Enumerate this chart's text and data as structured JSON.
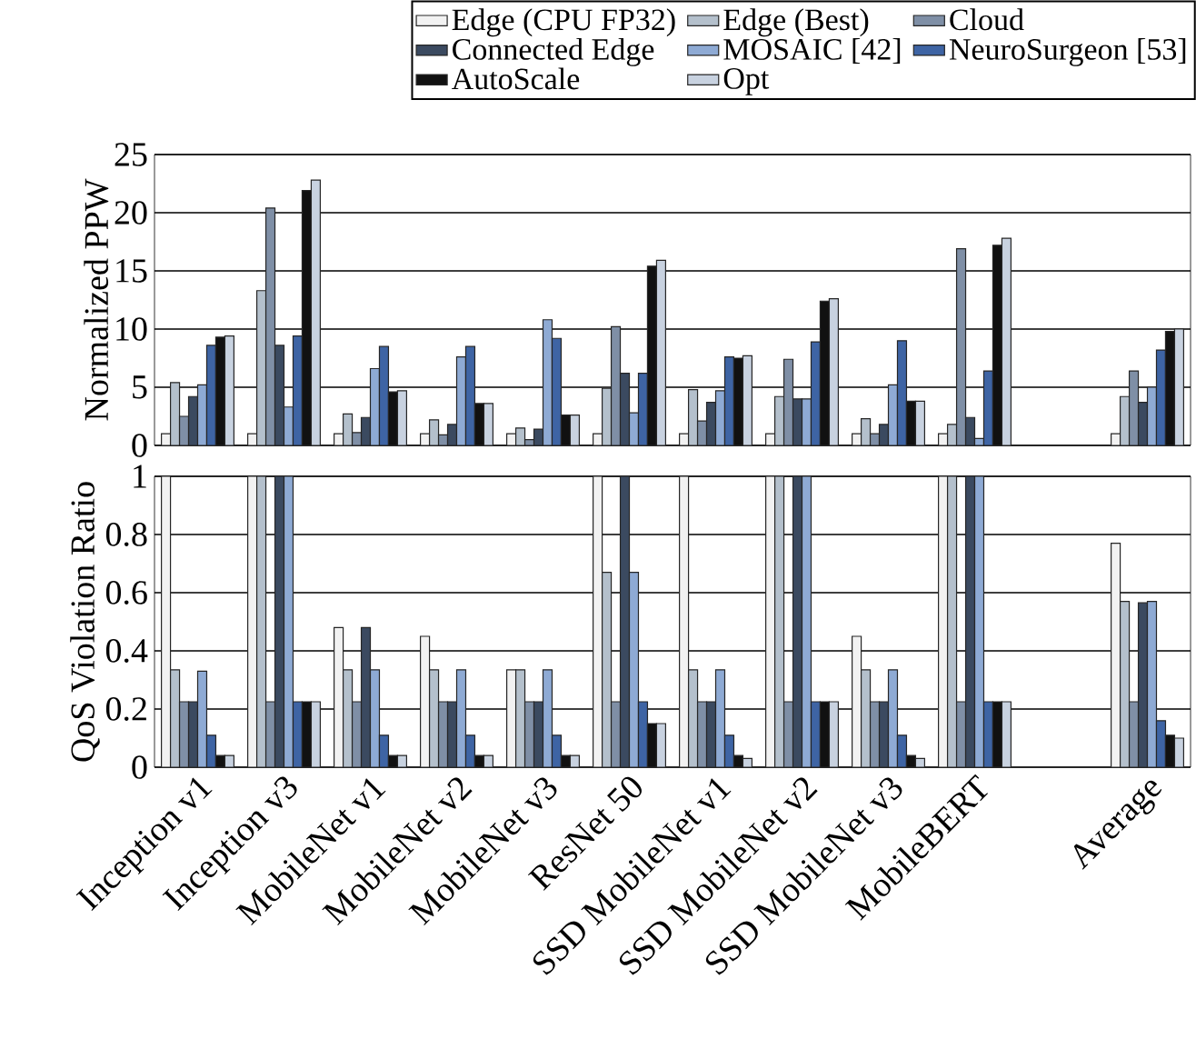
{
  "chart_data": [
    {
      "type": "bar",
      "ylabel": "Normalized PPW",
      "categories": [
        null,
        null,
        null,
        null,
        null,
        null,
        null,
        null,
        null,
        null,
        null,
        null
      ],
      "series": [
        {
          "name": "Edge (CPU FP32)",
          "color": "#f2f2f2",
          "values": [
            1,
            1,
            1,
            1,
            1,
            1,
            1,
            1,
            1,
            1,
            null,
            1
          ]
        },
        {
          "name": "Edge (Best)",
          "color": "#b4c0cc",
          "values": [
            5.4,
            13.3,
            2.7,
            2.2,
            1.5,
            4.9,
            4.8,
            4.2,
            2.3,
            1.8,
            null,
            4.2
          ]
        },
        {
          "name": "Cloud",
          "color": "#7f8fa6",
          "values": [
            2.5,
            20.4,
            1.1,
            0.9,
            0.5,
            10.2,
            2.1,
            7.4,
            1,
            16.9,
            null,
            6.4
          ]
        },
        {
          "name": "Connected Edge",
          "color": "#3b4a60",
          "values": [
            4.2,
            8.6,
            2.4,
            1.8,
            1.4,
            6.2,
            3.7,
            4,
            1.8,
            2.4,
            null,
            3.7
          ]
        },
        {
          "name": "MOSAIC [42]",
          "color": "#8eaad4",
          "values": [
            5.2,
            3.3,
            6.6,
            7.6,
            10.8,
            2.8,
            4.7,
            4,
            5.2,
            0.6,
            null,
            5
          ]
        },
        {
          "name": "NeuroSurgeon [53]",
          "color": "#3e64a4",
          "values": [
            8.6,
            9.4,
            8.5,
            8.5,
            9.2,
            6.2,
            7.6,
            8.9,
            9,
            6.4,
            null,
            8.2
          ]
        },
        {
          "name": "AutoScale",
          "color": "#111111",
          "values": [
            9.3,
            21.9,
            4.6,
            3.6,
            2.6,
            15.4,
            7.5,
            12.4,
            3.8,
            17.2,
            null,
            9.8
          ]
        },
        {
          "name": "Opt",
          "color": "#c8d2e0",
          "values": [
            9.4,
            22.8,
            4.7,
            3.6,
            2.6,
            15.9,
            7.7,
            12.6,
            3.8,
            17.8,
            null,
            10
          ]
        }
      ],
      "ylim": [
        0,
        25
      ],
      "yticks": [
        0,
        5,
        10,
        15,
        20,
        25
      ],
      "grid": "y",
      "legend": "top",
      "tick_labels": "y"
    },
    {
      "type": "bar",
      "ylabel": "QoS Violation Ratio",
      "categories": [
        "Inception v1",
        "Inception v3",
        "MobileNet v1",
        "MobileNet v2",
        "MobileNet v3",
        "ResNet 50",
        "SSD MobileNet v1",
        "SSD MobileNet v2",
        "SSD MobileNet v3",
        "MobileBERT",
        null,
        "Average"
      ],
      "series": [
        {
          "color": "#f2f2f2",
          "values": [
            1,
            1,
            0.48,
            0.45,
            0.335,
            1,
            1,
            1,
            0.45,
            1,
            null,
            0.77
          ]
        },
        {
          "color": "#b4c0cc",
          "values": [
            0.335,
            1,
            0.335,
            0.335,
            0.335,
            0.67,
            0.335,
            1,
            0.335,
            1,
            null,
            0.57
          ]
        },
        {
          "color": "#7f8fa6",
          "values": [
            0.225,
            0.225,
            0.225,
            0.225,
            0.225,
            0.225,
            0.225,
            0.225,
            0.225,
            0.225,
            null,
            0.225
          ]
        },
        {
          "color": "#3b4a60",
          "values": [
            0.225,
            1,
            0.48,
            0.225,
            0.225,
            1,
            0.225,
            1,
            0.225,
            1,
            null,
            0.565
          ]
        },
        {
          "color": "#8eaad4",
          "values": [
            0.33,
            1,
            0.335,
            0.335,
            0.335,
            0.67,
            0.335,
            1,
            0.335,
            1,
            null,
            0.57
          ]
        },
        {
          "color": "#3e64a4",
          "values": [
            0.11,
            0.225,
            0.11,
            0.11,
            0.11,
            0.225,
            0.11,
            0.225,
            0.11,
            0.225,
            null,
            0.16
          ]
        },
        {
          "color": "#111111",
          "values": [
            0.04,
            0.225,
            0.04,
            0.04,
            0.04,
            0.15,
            0.04,
            0.225,
            0.04,
            0.225,
            null,
            0.11
          ]
        },
        {
          "color": "#c8d2e0",
          "values": [
            0.04,
            0.225,
            0.04,
            0.04,
            0.04,
            0.15,
            0.03,
            0.225,
            0.03,
            0.225,
            null,
            0.1
          ]
        }
      ],
      "ylim": [
        0,
        1
      ],
      "yticks": [
        0,
        0.2,
        0.4,
        0.6,
        0.8,
        1
      ],
      "grid": "y"
    }
  ]
}
